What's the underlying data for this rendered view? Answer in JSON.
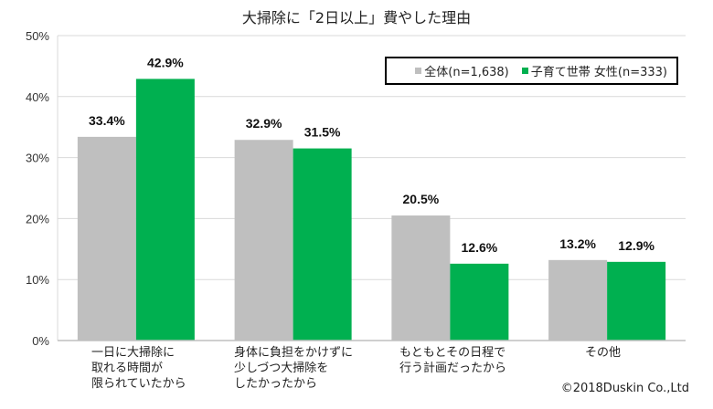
{
  "chart_data": {
    "type": "bar",
    "title": "大掃除に「2日以上」費やした理由",
    "categories": [
      "一日に大掃除に\n取れる時間が\n限られていたから",
      "身体に負担をかけずに\n少しづつ大掃除を\nしたかったから",
      "もともとその日程で\n行う計画だったから",
      "その他"
    ],
    "series": [
      {
        "name": "全体(n=1,638)",
        "color": "#bfbfbf",
        "values": [
          33.4,
          32.9,
          20.5,
          13.2
        ],
        "labels": [
          "33.4%",
          "32.9%",
          "20.5%",
          "13.2%"
        ]
      },
      {
        "name": "子育て世帯 女性(n=333)",
        "color": "#00b050",
        "values": [
          42.9,
          31.5,
          12.6,
          12.9
        ],
        "labels": [
          "42.9%",
          "31.5%",
          "12.6%",
          "12.9%"
        ]
      }
    ],
    "ylim": [
      0,
      50
    ],
    "yticks": [
      "0%",
      "10%",
      "20%",
      "30%",
      "40%",
      "50%"
    ],
    "grid": true,
    "legend": "top-right"
  },
  "copyright": "©2018Duskin Co.,Ltd"
}
